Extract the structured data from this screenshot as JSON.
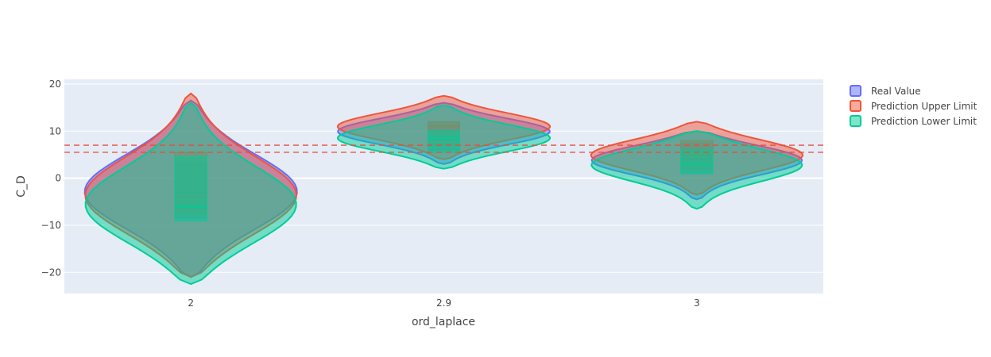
{
  "chart_data": {
    "type": "violin",
    "xlabel": "ord_laplace",
    "ylabel": "C_D",
    "categories": [
      "2",
      "2.9",
      "3"
    ],
    "ylim": [
      -24.5,
      21
    ],
    "y_ticks": [
      20,
      10,
      0,
      -10,
      -20
    ],
    "y_tick_labels": [
      "20",
      "10",
      "0",
      "−10",
      "−20"
    ],
    "grid": true,
    "legend_position": "top-right",
    "reference_lines": [
      7.0,
      5.5
    ],
    "series": [
      {
        "name": "Real Value",
        "color": "#636efa",
        "violins": [
          {
            "category": "2",
            "range": [
              -21,
              16.5
            ],
            "box": [
              -8.5,
              3
            ],
            "median": -3
          },
          {
            "category": "2.9",
            "range": [
              3,
              16
            ],
            "box": [
              6,
              12
            ],
            "median": 10
          },
          {
            "category": "3",
            "range": [
              -4.5,
              10
            ],
            "box": [
              1,
              7.5
            ],
            "median": 4
          }
        ]
      },
      {
        "name": "Prediction Upper Limit",
        "color": "#ef553b",
        "violins": [
          {
            "category": "2",
            "range": [
              -21,
              18
            ],
            "box": [
              -7.5,
              5.5
            ],
            "median": -4
          },
          {
            "category": "2.9",
            "range": [
              4,
              17.5
            ],
            "box": [
              7,
              12
            ],
            "median": 11
          },
          {
            "category": "3",
            "range": [
              -3.5,
              12
            ],
            "box": [
              2,
              8
            ],
            "median": 5
          }
        ]
      },
      {
        "name": "Prediction Lower Limit",
        "color": "#00cc96",
        "violins": [
          {
            "category": "2",
            "range": [
              -22.5,
              16
            ],
            "box": [
              -9,
              4.5
            ],
            "median": -6
          },
          {
            "category": "2.9",
            "range": [
              2,
              15.5
            ],
            "box": [
              5.5,
              10
            ],
            "median": 8.5
          },
          {
            "category": "3",
            "range": [
              -6.5,
              10
            ],
            "box": [
              1,
              6
            ],
            "median": 3
          }
        ]
      }
    ]
  }
}
